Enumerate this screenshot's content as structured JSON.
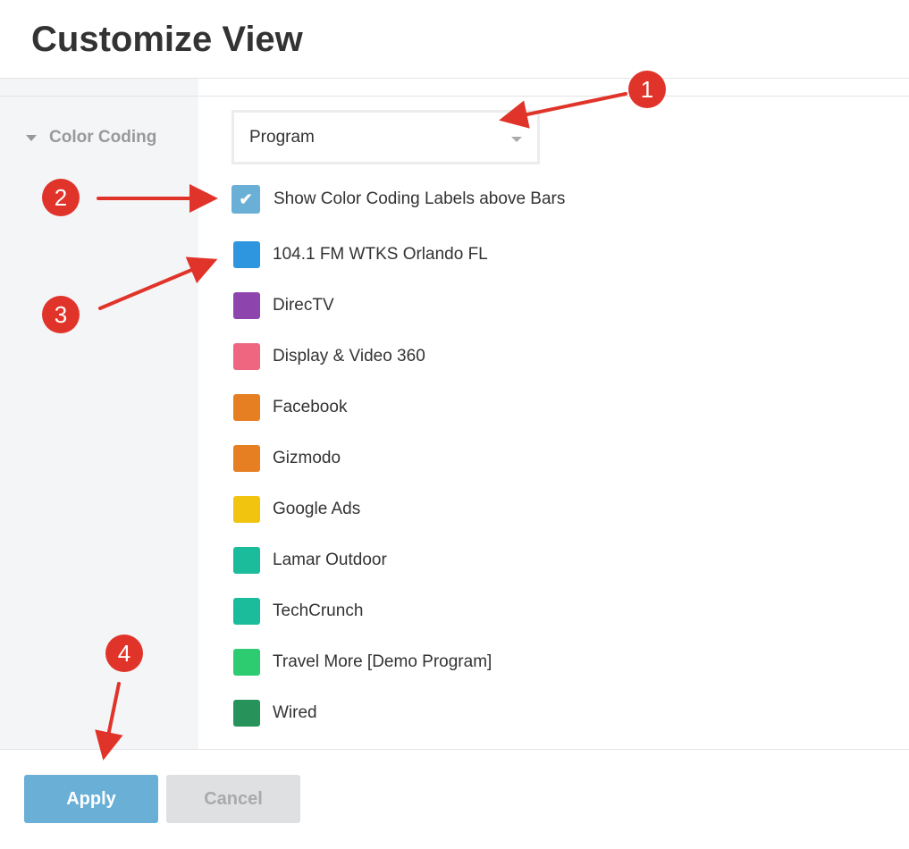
{
  "title": "Customize View",
  "sidebar": {
    "section": "Color Coding"
  },
  "select": {
    "value": "Program"
  },
  "checkbox": {
    "label": "Show Color Coding Labels above Bars",
    "checked": true
  },
  "items": [
    {
      "label": "104.1 FM WTKS Orlando FL",
      "color": "#2d96de"
    },
    {
      "label": "DirecTV",
      "color": "#8e44ad"
    },
    {
      "label": "Display & Video 360",
      "color": "#ee6680"
    },
    {
      "label": "Facebook",
      "color": "#e67e22"
    },
    {
      "label": "Gizmodo",
      "color": "#e67e22"
    },
    {
      "label": "Google Ads",
      "color": "#f1c40f"
    },
    {
      "label": "Lamar Outdoor",
      "color": "#1abc9c"
    },
    {
      "label": "TechCrunch",
      "color": "#1abc9c"
    },
    {
      "label": "Travel More [Demo Program]",
      "color": "#2ecc71"
    },
    {
      "label": "Wired",
      "color": "#27935a"
    }
  ],
  "footer": {
    "apply": "Apply",
    "cancel": "Cancel"
  },
  "annotations": [
    "1",
    "2",
    "3",
    "4"
  ]
}
